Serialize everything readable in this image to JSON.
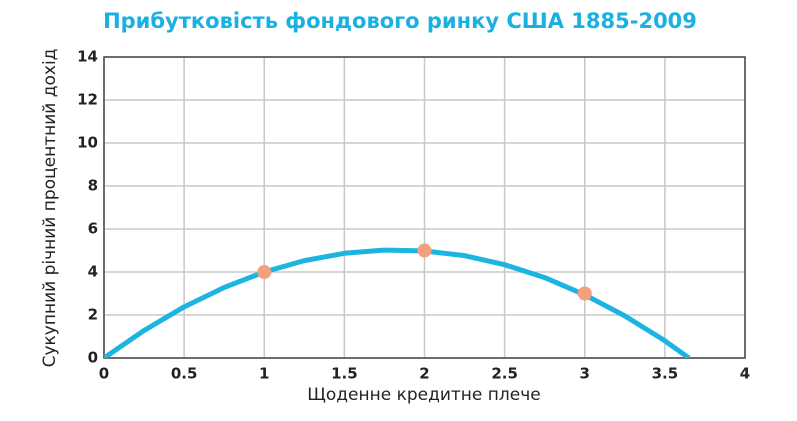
{
  "chart_data": {
    "type": "line",
    "title": "Прибутковість фондового ринку США 1885-2009",
    "x_label": "Щоденне кредитне плече",
    "y_label": "Сукупний річний процентний дохід",
    "xlim": [
      0,
      4
    ],
    "xticks": [
      0,
      0.5,
      1,
      1.5,
      2,
      2.5,
      3,
      3.5,
      4
    ],
    "ylim": [
      0,
      14
    ],
    "yticks": [
      0,
      2,
      4,
      6,
      8,
      10,
      12,
      14
    ],
    "grid": true,
    "series": [
      {
        "type": "line",
        "color": "#1cb4e0",
        "x": [
          0,
          0.25,
          0.5,
          0.75,
          1,
          1.25,
          1.5,
          1.75,
          2,
          2.25,
          2.5,
          2.75,
          3,
          3.25,
          3.5,
          3.65
        ],
        "values": [
          0,
          1.28,
          2.38,
          3.28,
          4.0,
          4.53,
          4.87,
          5.02,
          4.98,
          4.76,
          4.34,
          3.74,
          2.94,
          1.96,
          0.8,
          0
        ]
      },
      {
        "type": "scatter",
        "color": "#f5a07c",
        "x": [
          1,
          2,
          3
        ],
        "values": [
          4,
          5,
          3
        ]
      }
    ]
  }
}
